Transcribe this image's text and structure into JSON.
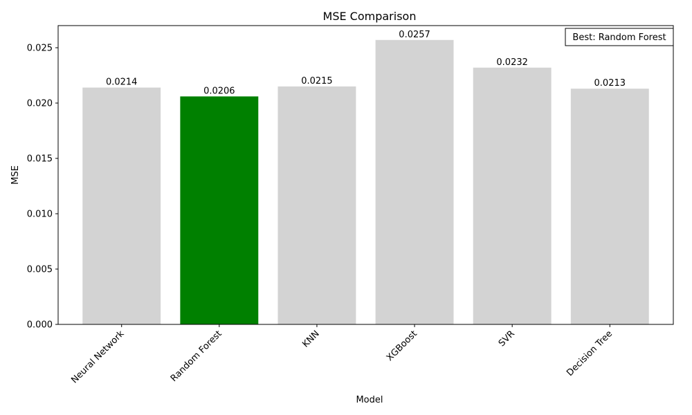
{
  "chart_data": {
    "type": "bar",
    "title": "MSE Comparison",
    "xlabel": "Model",
    "ylabel": "MSE",
    "categories": [
      "Neural Network",
      "Random Forest",
      "KNN",
      "XGBoost",
      "SVR",
      "Decision Tree"
    ],
    "values": [
      0.0214,
      0.0206,
      0.0215,
      0.0257,
      0.0232,
      0.0213
    ],
    "value_labels": [
      "0.0214",
      "0.0206",
      "0.0215",
      "0.0257",
      "0.0232",
      "0.0213"
    ],
    "highlight_index": 1,
    "colors": {
      "default": "#d3d3d3",
      "highlight": "#008000"
    },
    "ylim": [
      0,
      0.027
    ],
    "yticks": [
      0.0,
      0.005,
      0.01,
      0.015,
      0.02,
      0.025
    ],
    "ytick_labels": [
      "0.000",
      "0.005",
      "0.010",
      "0.015",
      "0.020",
      "0.025"
    ],
    "annotation": "Best: Random Forest",
    "annotation_placement": "top-right",
    "grid": false
  }
}
